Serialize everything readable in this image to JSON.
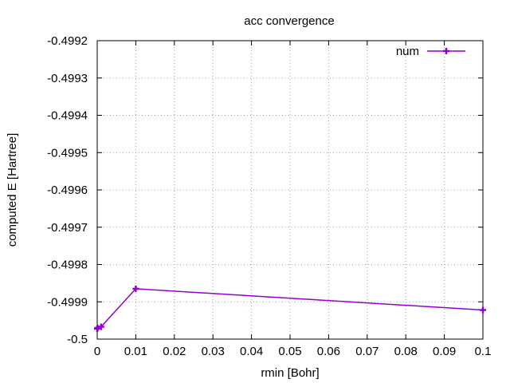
{
  "chart_data": {
    "type": "line",
    "title": "acc convergence",
    "xlabel": "rmin [Bohr]",
    "ylabel": "computed E [Hartree]",
    "xlim": [
      0,
      0.1
    ],
    "ylim": [
      -0.5,
      -0.4992
    ],
    "xticks": [
      "0",
      "0.01",
      "0.02",
      "0.03",
      "0.04",
      "0.05",
      "0.06",
      "0.07",
      "0.08",
      "0.09",
      "0.1"
    ],
    "yticks": [
      "-0.4992",
      "-0.4993",
      "-0.4994",
      "-0.4995",
      "-0.4996",
      "-0.4997",
      "-0.4998",
      "-0.4999",
      "-0.5"
    ],
    "grid": true,
    "legend_position": "top-right",
    "series": [
      {
        "name": "num",
        "color": "#9400d3",
        "marker": "plus",
        "x": [
          0.0,
          0.0001,
          0.001,
          0.01,
          0.1
        ],
        "y": [
          -0.499972,
          -0.49997,
          -0.499967,
          -0.499865,
          -0.499922
        ]
      }
    ]
  }
}
